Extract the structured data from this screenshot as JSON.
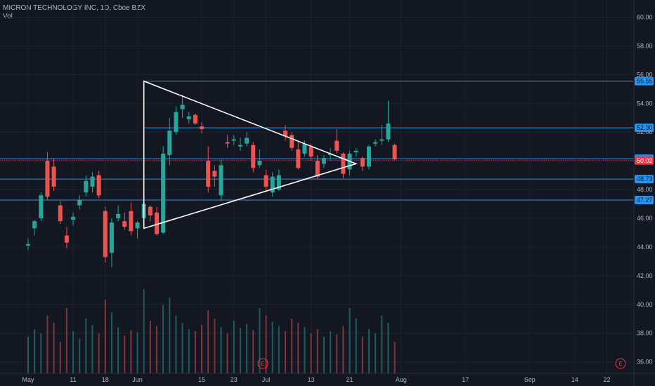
{
  "header": {
    "title": "MICRON TECHNOLOGY INC, 1D, Cboe BZX",
    "volume_label": "Vol"
  },
  "colors": {
    "background": "#131722",
    "up": "#26a69a",
    "down": "#ef5350",
    "level_line": "#2196f3",
    "triangle": "#ffffff",
    "last_price_tag": "#f23645",
    "grid": "#1e222d"
  },
  "earnings_marker": {
    "label": "E",
    "dates": [
      "Jun 30",
      "Sep 23"
    ]
  },
  "chart_data": {
    "type": "candlestick",
    "symbol": "MICRON TECHNOLOGY INC",
    "interval": "1D",
    "exchange": "Cboe BZX",
    "y_range": [
      35.2,
      61.2
    ],
    "y_ticks": [
      "60.00",
      "58.00",
      "56.00",
      "54.00",
      "52.00",
      "50.00",
      "48.00",
      "46.00",
      "44.00",
      "42.00",
      "40.00",
      "38.00",
      "36.00"
    ],
    "x_ticks": [
      {
        "label": "May",
        "index": 0
      },
      {
        "label": "11",
        "index": 7
      },
      {
        "label": "18",
        "index": 12
      },
      {
        "label": "Jun",
        "index": 17
      },
      {
        "label": "15",
        "index": 27
      },
      {
        "label": "23",
        "index": 32
      },
      {
        "label": "Jul",
        "index": 37
      },
      {
        "label": "13",
        "index": 44
      },
      {
        "label": "21",
        "index": 50
      },
      {
        "label": "Aug",
        "index": 58
      },
      {
        "label": "17",
        "index": 68
      },
      {
        "label": "Sep",
        "index": 78
      },
      {
        "label": "14",
        "index": 85
      },
      {
        "label": "22",
        "index": 90
      }
    ],
    "price_levels": [
      {
        "label": "55.55",
        "value": 55.55
      },
      {
        "label": "52.30",
        "value": 52.3
      },
      {
        "label": "50.15",
        "value": 50.15
      },
      {
        "label": "48.73",
        "value": 48.73
      },
      {
        "label": "47.27",
        "value": 47.27
      }
    ],
    "last_price": {
      "label": "50.02",
      "value": 50.02
    },
    "triangle": {
      "apex_top": {
        "index": 18,
        "price": 55.55
      },
      "apex_bottom": {
        "index": 18,
        "price": 45.3
      },
      "apex_right": {
        "index": 51,
        "price": 49.8
      }
    },
    "candles": [
      {
        "o": 44.1,
        "h": 44.6,
        "l": 43.8,
        "c": 44.2
      },
      {
        "o": 45.3,
        "h": 45.9,
        "l": 44.8,
        "c": 45.8
      },
      {
        "o": 46.0,
        "h": 47.8,
        "l": 45.8,
        "c": 47.6
      },
      {
        "o": 50.0,
        "h": 50.6,
        "l": 47.3,
        "c": 47.5
      },
      {
        "o": 49.6,
        "h": 50.2,
        "l": 47.9,
        "c": 48.2
      },
      {
        "o": 46.9,
        "h": 47.2,
        "l": 45.6,
        "c": 45.8
      },
      {
        "o": 44.8,
        "h": 45.4,
        "l": 43.9,
        "c": 44.3
      },
      {
        "o": 45.9,
        "h": 46.4,
        "l": 45.5,
        "c": 46.1
      },
      {
        "o": 46.9,
        "h": 47.6,
        "l": 46.6,
        "c": 47.3
      },
      {
        "o": 47.8,
        "h": 49.0,
        "l": 47.5,
        "c": 48.6
      },
      {
        "o": 48.2,
        "h": 49.2,
        "l": 47.8,
        "c": 48.9
      },
      {
        "o": 49.0,
        "h": 49.3,
        "l": 47.4,
        "c": 47.6
      },
      {
        "o": 46.5,
        "h": 46.8,
        "l": 42.9,
        "c": 43.3
      },
      {
        "o": 43.6,
        "h": 46.0,
        "l": 42.6,
        "c": 45.7
      },
      {
        "o": 46.0,
        "h": 46.9,
        "l": 45.8,
        "c": 46.3
      },
      {
        "o": 45.8,
        "h": 46.4,
        "l": 45.2,
        "c": 45.4
      },
      {
        "o": 46.5,
        "h": 47.1,
        "l": 44.8,
        "c": 45.1
      },
      {
        "o": 45.3,
        "h": 45.8,
        "l": 44.6,
        "c": 45.7
      },
      {
        "o": 46.0,
        "h": 47.2,
        "l": 45.4,
        "c": 47.0
      },
      {
        "o": 46.8,
        "h": 46.9,
        "l": 45.8,
        "c": 46.2
      },
      {
        "o": 46.4,
        "h": 46.8,
        "l": 44.8,
        "c": 44.9
      }
    ],
    "volume_bars": []
  }
}
